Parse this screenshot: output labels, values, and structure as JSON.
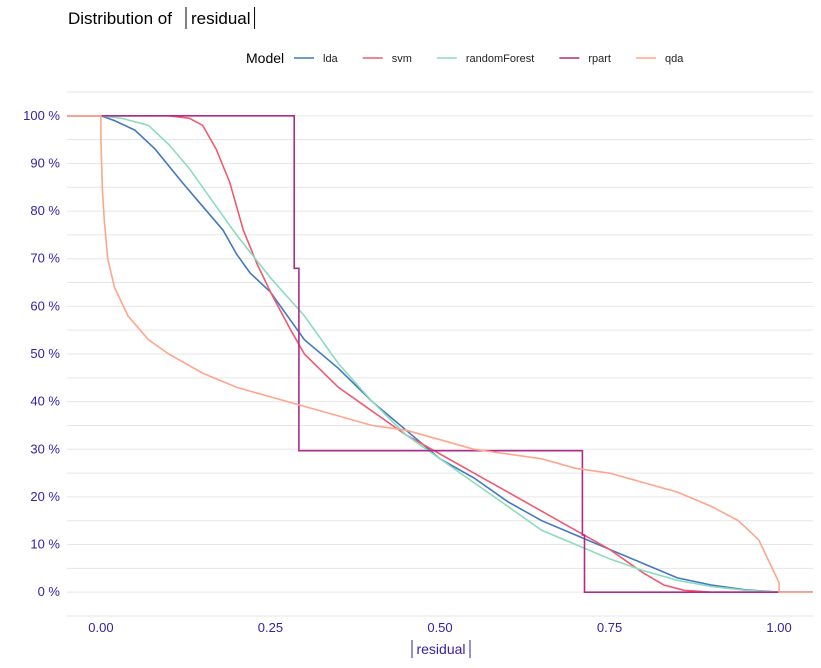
{
  "chart_data": {
    "type": "line",
    "title_prefix": "Distribution of",
    "title_var": "residual",
    "xlabel": "residual",
    "ylabel": "",
    "xlim": [
      -0.05,
      1.05
    ],
    "ylim": [
      -0.05,
      1.05
    ],
    "x_ticks": [
      0,
      0.25,
      0.5,
      0.75,
      1.0
    ],
    "x_tick_labels": [
      "0.00",
      "0.25",
      "0.50",
      "0.75",
      "1.00"
    ],
    "y_ticks": [
      0,
      0.1,
      0.2,
      0.3,
      0.4,
      0.5,
      0.6,
      0.7,
      0.8,
      0.9,
      1.0
    ],
    "y_tick_labels": [
      "0 %",
      "10 %",
      "20 %",
      "30 %",
      "40 %",
      "50 %",
      "60 %",
      "70 %",
      "80 %",
      "90 %",
      "100 %"
    ],
    "grid": true,
    "legend": {
      "title": "Model",
      "position": "top"
    },
    "series": [
      {
        "name": "lda",
        "color": "#4378bf",
        "step": false,
        "x": [
          -0.05,
          0.0,
          0.02,
          0.05,
          0.08,
          0.12,
          0.15,
          0.18,
          0.2,
          0.22,
          0.25,
          0.28,
          0.3,
          0.35,
          0.4,
          0.45,
          0.5,
          0.55,
          0.6,
          0.65,
          0.7,
          0.75,
          0.8,
          0.85,
          0.9,
          0.95,
          1.0,
          1.05
        ],
        "y": [
          1.0,
          1.0,
          0.99,
          0.97,
          0.93,
          0.86,
          0.81,
          0.76,
          0.71,
          0.67,
          0.63,
          0.57,
          0.53,
          0.47,
          0.4,
          0.34,
          0.28,
          0.24,
          0.19,
          0.15,
          0.12,
          0.09,
          0.06,
          0.03,
          0.015,
          0.005,
          0.0,
          0.0
        ]
      },
      {
        "name": "svm",
        "color": "#f05a71",
        "step": false,
        "x": [
          -0.05,
          0.0,
          0.05,
          0.1,
          0.13,
          0.15,
          0.17,
          0.19,
          0.21,
          0.23,
          0.25,
          0.28,
          0.3,
          0.35,
          0.4,
          0.45,
          0.5,
          0.55,
          0.6,
          0.65,
          0.7,
          0.75,
          0.8,
          0.83,
          0.86,
          0.9,
          0.95,
          1.0,
          1.05
        ],
        "y": [
          1.0,
          1.0,
          1.0,
          1.0,
          0.995,
          0.98,
          0.93,
          0.86,
          0.76,
          0.69,
          0.63,
          0.55,
          0.5,
          0.43,
          0.38,
          0.33,
          0.29,
          0.25,
          0.21,
          0.17,
          0.13,
          0.09,
          0.04,
          0.015,
          0.004,
          0.0,
          0.0,
          0.0,
          0.0
        ]
      },
      {
        "name": "randomForest",
        "color": "#8bdcbe",
        "step": false,
        "x": [
          -0.05,
          0.0,
          0.03,
          0.07,
          0.1,
          0.13,
          0.16,
          0.2,
          0.25,
          0.3,
          0.35,
          0.4,
          0.45,
          0.5,
          0.55,
          0.6,
          0.65,
          0.7,
          0.75,
          0.8,
          0.85,
          0.9,
          0.95,
          1.0,
          1.05
        ],
        "y": [
          1.0,
          1.0,
          0.995,
          0.98,
          0.94,
          0.89,
          0.83,
          0.75,
          0.66,
          0.58,
          0.48,
          0.4,
          0.33,
          0.28,
          0.23,
          0.18,
          0.13,
          0.1,
          0.07,
          0.045,
          0.025,
          0.012,
          0.004,
          0.0,
          0.0
        ]
      },
      {
        "name": "rpart",
        "color": "#ae2c87",
        "step": true,
        "x": [
          -0.05,
          0.285,
          0.285,
          0.292,
          0.292,
          0.71,
          0.71,
          0.713,
          0.713,
          1.05
        ],
        "y": [
          1.0,
          1.0,
          0.68,
          0.68,
          0.297,
          0.297,
          0.12,
          0.12,
          0.0,
          0.0
        ]
      },
      {
        "name": "qda",
        "color": "#ffa58c",
        "step": false,
        "x": [
          -0.05,
          0.0,
          0.0,
          0.002,
          0.005,
          0.01,
          0.02,
          0.04,
          0.07,
          0.1,
          0.15,
          0.2,
          0.25,
          0.3,
          0.35,
          0.4,
          0.45,
          0.5,
          0.55,
          0.6,
          0.65,
          0.7,
          0.75,
          0.8,
          0.85,
          0.9,
          0.94,
          0.97,
          0.99,
          1.0,
          1.0,
          1.05
        ],
        "y": [
          1.0,
          1.0,
          0.95,
          0.85,
          0.78,
          0.7,
          0.64,
          0.58,
          0.53,
          0.5,
          0.46,
          0.43,
          0.41,
          0.39,
          0.37,
          0.35,
          0.34,
          0.32,
          0.3,
          0.29,
          0.28,
          0.26,
          0.25,
          0.23,
          0.21,
          0.18,
          0.15,
          0.11,
          0.05,
          0.02,
          0.0,
          0.0
        ]
      }
    ]
  }
}
